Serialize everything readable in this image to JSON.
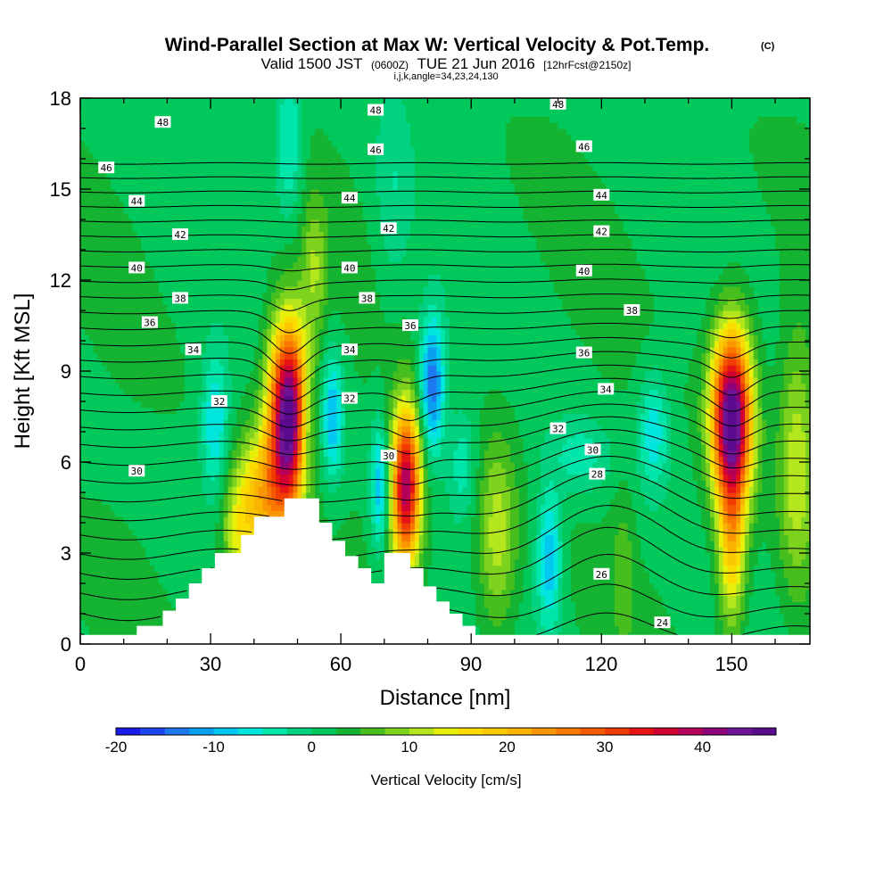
{
  "chart_data": {
    "type": "heatmap",
    "title": "Wind-Parallel Section at Max W: Vertical Velocity & Pot.Temp.",
    "title_mark": "(C)",
    "subtitle_parts": [
      "Valid 1500 JST",
      "(0600Z)",
      "TUE 21 Jun 2016",
      "[12hrFcst@2150z]"
    ],
    "subtitle2": "i,j,k,angle=34,23,24,130",
    "xlabel": "Distance [nm]",
    "ylabel": "Height [Kft MSL]",
    "xlim": [
      0,
      168
    ],
    "ylim": [
      0,
      18
    ],
    "xticks": [
      "0",
      "30",
      "60",
      "90",
      "120",
      "150"
    ],
    "yticks": [
      "0",
      "3",
      "6",
      "9",
      "12",
      "15",
      "18"
    ],
    "colorbar": {
      "label": "Vertical Velocity [cm/s]",
      "range": [
        -20,
        47.5
      ],
      "step": 2.5,
      "ticks": [
        "-20",
        "-10",
        "0",
        "10",
        "20",
        "30",
        "40"
      ],
      "colors": [
        "#1a1ae6",
        "#1e46f0",
        "#1e78f0",
        "#0aa0f0",
        "#00c8f0",
        "#00e6dc",
        "#00e6aa",
        "#00d282",
        "#00c85a",
        "#14b432",
        "#46be1e",
        "#7dd21e",
        "#b4e61e",
        "#e6f00a",
        "#fadc00",
        "#fac800",
        "#fab400",
        "#fa9600",
        "#fa7800",
        "#f55a00",
        "#f03c00",
        "#e61414",
        "#d20032",
        "#b4005a",
        "#8c0078",
        "#6e1496",
        "#5a0a8c"
      ]
    },
    "terrain_kft": [
      [
        0,
        0.3
      ],
      [
        13,
        0.3
      ],
      [
        13,
        0.6
      ],
      [
        19,
        0.6
      ],
      [
        19,
        1.1
      ],
      [
        22,
        1.1
      ],
      [
        22,
        1.5
      ],
      [
        25,
        1.5
      ],
      [
        25,
        2.0
      ],
      [
        28,
        2.0
      ],
      [
        28,
        2.5
      ],
      [
        31,
        2.5
      ],
      [
        31,
        3.0
      ],
      [
        37,
        3.0
      ],
      [
        37,
        3.6
      ],
      [
        40,
        3.6
      ],
      [
        40,
        4.2
      ],
      [
        47,
        4.2
      ],
      [
        47,
        4.8
      ],
      [
        55,
        4.8
      ],
      [
        55,
        4.0
      ],
      [
        58,
        4.0
      ],
      [
        58,
        3.4
      ],
      [
        61,
        3.4
      ],
      [
        61,
        2.9
      ],
      [
        64,
        2.9
      ],
      [
        64,
        2.5
      ],
      [
        67,
        2.5
      ],
      [
        67,
        2.0
      ],
      [
        70,
        2.0
      ],
      [
        70,
        3.0
      ],
      [
        76,
        3.0
      ],
      [
        76,
        2.5
      ],
      [
        79,
        2.5
      ],
      [
        79,
        1.9
      ],
      [
        82,
        1.9
      ],
      [
        82,
        1.4
      ],
      [
        85,
        1.4
      ],
      [
        85,
        1.0
      ],
      [
        88,
        1.0
      ],
      [
        88,
        0.6
      ],
      [
        91,
        0.6
      ],
      [
        91,
        0.3
      ],
      [
        168,
        0.3
      ]
    ],
    "w_cells": [
      {
        "x": 48,
        "y": 7.6,
        "sx": 3.2,
        "sy": 2.1,
        "w": 46
      },
      {
        "x": 42,
        "y": 4.8,
        "sx": 4.5,
        "sy": 1.5,
        "w": 18
      },
      {
        "x": 36,
        "y": 3.5,
        "sx": 2.5,
        "sy": 1.2,
        "w": 8
      },
      {
        "x": 75,
        "y": 5.2,
        "sx": 2.4,
        "sy": 1.8,
        "w": 38
      },
      {
        "x": 150,
        "y": 7.5,
        "sx": 3.2,
        "sy": 2.0,
        "w": 46
      },
      {
        "x": 150,
        "y": 3.2,
        "sx": 2.2,
        "sy": 2.0,
        "w": 16
      },
      {
        "x": 96,
        "y": 3.5,
        "sx": 3.2,
        "sy": 2.3,
        "w": 10
      },
      {
        "x": 125,
        "y": 2.5,
        "sx": 1.8,
        "sy": 1.8,
        "w": 4
      },
      {
        "x": 165,
        "y": 6.0,
        "sx": 3.0,
        "sy": 3.0,
        "w": 10
      },
      {
        "x": 54,
        "y": 12.5,
        "sx": 2.0,
        "sy": 1.6,
        "w": 7
      },
      {
        "x": 52,
        "y": 7.0,
        "sx": 1.6,
        "sy": 1.6,
        "w": -9
      },
      {
        "x": 58,
        "y": 7.5,
        "sx": 1.8,
        "sy": 1.5,
        "w": -12
      },
      {
        "x": 31,
        "y": 7.3,
        "sx": 2.2,
        "sy": 1.6,
        "w": -10
      },
      {
        "x": 81,
        "y": 8.6,
        "sx": 2.0,
        "sy": 1.6,
        "w": -17
      },
      {
        "x": 69,
        "y": 5.2,
        "sx": 1.5,
        "sy": 1.5,
        "w": -12
      },
      {
        "x": 88,
        "y": 6.0,
        "sx": 2.2,
        "sy": 1.2,
        "w": -6
      },
      {
        "x": 108,
        "y": 2.8,
        "sx": 2.0,
        "sy": 1.6,
        "w": -12
      },
      {
        "x": 132,
        "y": 7.0,
        "sx": 2.5,
        "sy": 1.4,
        "w": -9
      },
      {
        "x": 48,
        "y": 16.5,
        "sx": 2.2,
        "sy": 1.8,
        "w": -8
      },
      {
        "x": 72,
        "y": 15.0,
        "sx": 3.0,
        "sy": 2.5,
        "w": -4
      },
      {
        "x": 115,
        "y": 6.2,
        "sx": 5.0,
        "sy": 0.9,
        "w": -6
      }
    ],
    "theta_levels": [
      22,
      23,
      24,
      25,
      26,
      27,
      28,
      29,
      30,
      31,
      32,
      33,
      34,
      35,
      36,
      37,
      38,
      39,
      40,
      41,
      42,
      43,
      44,
      45,
      46,
      47,
      48,
      49,
      50
    ],
    "theta_labels": [
      {
        "text": "48",
        "x": 19,
        "y": 17.2
      },
      {
        "text": "46",
        "x": 6,
        "y": 15.7
      },
      {
        "text": "44",
        "x": 13,
        "y": 14.6
      },
      {
        "text": "42",
        "x": 23,
        "y": 13.5
      },
      {
        "text": "40",
        "x": 13,
        "y": 12.4
      },
      {
        "text": "38",
        "x": 23,
        "y": 11.4
      },
      {
        "text": "36",
        "x": 16,
        "y": 10.6
      },
      {
        "text": "34",
        "x": 26,
        "y": 9.7
      },
      {
        "text": "32",
        "x": 32,
        "y": 8.0
      },
      {
        "text": "30",
        "x": 13,
        "y": 5.7
      },
      {
        "text": "48",
        "x": 68,
        "y": 17.6
      },
      {
        "text": "46",
        "x": 68,
        "y": 16.3
      },
      {
        "text": "44",
        "x": 62,
        "y": 14.7
      },
      {
        "text": "42",
        "x": 71,
        "y": 13.7
      },
      {
        "text": "40",
        "x": 62,
        "y": 12.4
      },
      {
        "text": "38",
        "x": 66,
        "y": 11.4
      },
      {
        "text": "36",
        "x": 76,
        "y": 10.5
      },
      {
        "text": "34",
        "x": 62,
        "y": 9.7
      },
      {
        "text": "32",
        "x": 62,
        "y": 8.1
      },
      {
        "text": "30",
        "x": 71,
        "y": 6.2
      },
      {
        "text": "48",
        "x": 110,
        "y": 17.8
      },
      {
        "text": "46",
        "x": 116,
        "y": 16.4
      },
      {
        "text": "44",
        "x": 120,
        "y": 14.8
      },
      {
        "text": "42",
        "x": 120,
        "y": 13.6
      },
      {
        "text": "40",
        "x": 116,
        "y": 12.3
      },
      {
        "text": "38",
        "x": 127,
        "y": 11.0
      },
      {
        "text": "36",
        "x": 116,
        "y": 9.6
      },
      {
        "text": "34",
        "x": 121,
        "y": 8.4
      },
      {
        "text": "32",
        "x": 110,
        "y": 7.1
      },
      {
        "text": "30",
        "x": 118,
        "y": 6.4
      },
      {
        "text": "28",
        "x": 119,
        "y": 5.6
      },
      {
        "text": "26",
        "x": 120,
        "y": 2.3
      },
      {
        "text": "24",
        "x": 134,
        "y": 0.7
      }
    ]
  }
}
